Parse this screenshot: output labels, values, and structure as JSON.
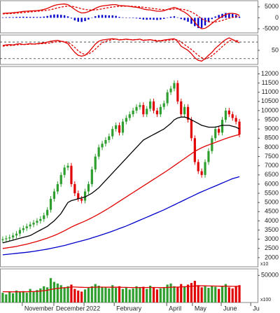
{
  "chart_data": [
    {
      "type": "macd",
      "ylim": [
        -6900,
        7800
      ],
      "yticks": [
        5000,
        0,
        -5000
      ],
      "series": [
        {
          "kind": "bar",
          "color": "#0000cc",
          "values": [
            200,
            250,
            300,
            300,
            400,
            450,
            500,
            450,
            400,
            400,
            350,
            400,
            550,
            850,
            1250,
            1500,
            1500,
            1350,
            1150,
            650,
            -300,
            -1200,
            -1800,
            -1900,
            -1500,
            -800,
            0,
            700,
            1200,
            1300,
            1200,
            1100,
            1100,
            900,
            400,
            200,
            100,
            -100,
            -200,
            -300,
            -500,
            -800,
            -900,
            -800,
            -900,
            -1000,
            -800,
            -500,
            100,
            500,
            700,
            200,
            -600,
            -1100,
            -1800,
            -2700,
            -3800,
            -4700,
            -4600,
            -3500,
            -2000,
            -600,
            600,
            1300,
            1800,
            2200,
            2200,
            1800,
            1300,
            500
          ]
        },
        {
          "kind": "line",
          "color": "#e00000",
          "values": [
            2000,
            2100,
            2200,
            2300,
            2500,
            2700,
            2900,
            3000,
            3100,
            3200,
            3300,
            3500,
            3800,
            4300,
            5000,
            5600,
            6000,
            6200,
            6300,
            6000,
            5000,
            3800,
            2800,
            2200,
            2300,
            2800,
            3500,
            4300,
            5000,
            5400,
            5600,
            5800,
            6000,
            6000,
            5600,
            5500,
            5400,
            5200,
            5000,
            4800,
            4500,
            4000,
            3700,
            3600,
            3300,
            3000,
            3000,
            3200,
            3800,
            4300,
            4700,
            4300,
            3300,
            2600,
            1500,
            0,
            -2000,
            -4000,
            -5000,
            -4800,
            -3800,
            -2600,
            -1300,
            -300,
            600,
            1500,
            2000,
            2000,
            1800,
            1100
          ]
        },
        {
          "kind": "line",
          "style": "dashed",
          "color": "#e00000",
          "values": [
            1800,
            1850,
            1900,
            2000,
            2100,
            2250,
            2400,
            2550,
            2700,
            2800,
            2950,
            3100,
            3250,
            3450,
            3750,
            4100,
            4500,
            4850,
            5150,
            5350,
            5300,
            5000,
            4600,
            4100,
            3800,
            3600,
            3500,
            3600,
            3800,
            4100,
            4400,
            4700,
            4900,
            5100,
            5200,
            5300,
            5300,
            5300,
            5200,
            5100,
            5000,
            4800,
            4600,
            4400,
            4200,
            4000,
            3800,
            3700,
            3700,
            3800,
            4000,
            4100,
            3900,
            3700,
            3300,
            2700,
            1800,
            700,
            -400,
            -1300,
            -1800,
            -2000,
            -1900,
            -1600,
            -1200,
            -700,
            -200,
            200,
            500,
            600
          ]
        }
      ]
    },
    {
      "type": "oscillator",
      "ylim": [
        16,
        87
      ],
      "yticks": [
        50
      ],
      "guide_lines": [
        30,
        70
      ],
      "series": [
        {
          "kind": "line",
          "color": "#e00000",
          "values": [
            62,
            63,
            64,
            63,
            65,
            66,
            64,
            65,
            66,
            65,
            66,
            67,
            68,
            70,
            72,
            73,
            74,
            72,
            70,
            66,
            55,
            45,
            38,
            36,
            38,
            45,
            55,
            65,
            72,
            75,
            76,
            77,
            78,
            77,
            75,
            76,
            77,
            76,
            75,
            76,
            77,
            74,
            75,
            76,
            74,
            72,
            73,
            75,
            76,
            77,
            78,
            72,
            60,
            55,
            50,
            42,
            32,
            26,
            24,
            30,
            38,
            45,
            55,
            62,
            70,
            76,
            80,
            76,
            72,
            68
          ]
        },
        {
          "kind": "line",
          "style": "dashed",
          "color": "#e00000",
          "values": [
            60,
            61,
            62,
            62,
            63,
            64,
            64,
            64,
            65,
            65,
            65,
            66,
            66,
            67,
            68,
            70,
            71,
            72,
            71,
            70,
            64,
            57,
            49,
            43,
            40,
            41,
            46,
            53,
            61,
            68,
            72,
            74,
            76,
            77,
            76,
            76,
            76,
            76,
            76,
            76,
            76,
            75,
            75,
            75,
            75,
            74,
            73,
            73,
            74,
            75,
            76,
            75,
            70,
            64,
            58,
            52,
            45,
            38,
            32,
            29,
            32,
            37,
            44,
            51,
            59,
            66,
            73,
            75,
            74,
            72
          ]
        }
      ]
    },
    {
      "type": "candlestick",
      "ylim": [
        1500,
        12400
      ],
      "yticks": [
        2000,
        2500,
        3000,
        3500,
        4000,
        4500,
        5000,
        5500,
        6000,
        6500,
        7000,
        7500,
        8000,
        8500,
        9000,
        9500,
        10000,
        10500,
        11000,
        11500,
        12000
      ],
      "unit_label": "x10",
      "up_color": "#2e9e2e",
      "down_color": "#e00000",
      "open": [
        2950,
        3000,
        3050,
        3100,
        3200,
        3300,
        3500,
        3600,
        3700,
        3800,
        3900,
        4000,
        4100,
        4300,
        4600,
        5200,
        5600,
        6000,
        6500,
        6900,
        7000,
        6000,
        5500,
        5200,
        5100,
        5600,
        6000,
        6800,
        7500,
        8000,
        8200,
        8400,
        8600,
        9000,
        9200,
        8800,
        9400,
        9600,
        9800,
        10000,
        10200,
        10300,
        9800,
        10100,
        10500,
        10000,
        9800,
        10200,
        10400,
        11000,
        11200,
        11500,
        10500,
        9800,
        10200,
        9500,
        8500,
        7200,
        6700,
        6500,
        7200,
        7800,
        8500,
        9000,
        8800,
        9500,
        10000,
        9800,
        9600,
        9400
      ],
      "high": [
        3150,
        3200,
        3250,
        3350,
        3450,
        3650,
        3750,
        3850,
        3950,
        4050,
        4150,
        4250,
        4450,
        4750,
        5350,
        5750,
        6150,
        6650,
        7050,
        7150,
        7150,
        6150,
        5650,
        5350,
        5750,
        6150,
        6950,
        7650,
        8150,
        8350,
        8550,
        8750,
        9150,
        9350,
        9350,
        9550,
        9750,
        9950,
        10150,
        10350,
        10450,
        10450,
        10250,
        10650,
        10650,
        10150,
        10350,
        10550,
        11150,
        11350,
        11650,
        11650,
        10650,
        10350,
        10350,
        9650,
        8650,
        7350,
        6850,
        7350,
        7950,
        8650,
        9150,
        9150,
        9650,
        10150,
        10150,
        9950,
        9750,
        9550
      ],
      "low": [
        2800,
        2850,
        2900,
        2950,
        3050,
        3150,
        3350,
        3450,
        3550,
        3650,
        3750,
        3850,
        3950,
        4150,
        4450,
        5050,
        5450,
        5850,
        6350,
        6750,
        5850,
        5350,
        5050,
        4950,
        4950,
        5450,
        5850,
        6650,
        7350,
        7850,
        8050,
        8250,
        8450,
        8850,
        8650,
        8650,
        9250,
        9450,
        9650,
        9850,
        10050,
        9650,
        9650,
        9950,
        9850,
        9650,
        9650,
        10050,
        10250,
        10850,
        11050,
        10350,
        9650,
        9650,
        9350,
        8350,
        7050,
        6550,
        6350,
        6350,
        7050,
        7650,
        8350,
        8650,
        8650,
        9350,
        9650,
        9450,
        9250,
        8550
      ],
      "close": [
        3000,
        3050,
        3100,
        3200,
        3300,
        3500,
        3600,
        3700,
        3800,
        3900,
        4000,
        4100,
        4300,
        4600,
        5200,
        5600,
        6000,
        6500,
        6900,
        7000,
        6000,
        5500,
        5200,
        5100,
        5600,
        6000,
        6800,
        7500,
        8000,
        8200,
        8400,
        8600,
        9000,
        9200,
        8800,
        9400,
        9600,
        9800,
        10000,
        10200,
        10300,
        9800,
        10100,
        10500,
        10000,
        9800,
        10200,
        10400,
        11000,
        11200,
        11500,
        10500,
        9800,
        10200,
        9500,
        8500,
        7200,
        6700,
        6500,
        7200,
        7800,
        8500,
        9000,
        8800,
        9500,
        10000,
        9800,
        9600,
        9400,
        8700
      ],
      "series": [
        {
          "kind": "line",
          "color": "#0000cc",
          "values": [
            2150,
            2170,
            2190,
            2210,
            2230,
            2250,
            2270,
            2290,
            2310,
            2340,
            2370,
            2400,
            2430,
            2460,
            2500,
            2540,
            2580,
            2620,
            2660,
            2710,
            2760,
            2810,
            2860,
            2910,
            2960,
            3010,
            3070,
            3130,
            3190,
            3250,
            3310,
            3370,
            3440,
            3510,
            3580,
            3650,
            3720,
            3800,
            3880,
            3960,
            4040,
            4120,
            4200,
            4280,
            4360,
            4440,
            4520,
            4600,
            4690,
            4780,
            4870,
            4960,
            5050,
            5140,
            5230,
            5320,
            5410,
            5500,
            5580,
            5660,
            5740,
            5820,
            5900,
            5980,
            6060,
            6140,
            6220,
            6300,
            6350,
            6400
          ]
        },
        {
          "kind": "line",
          "color": "#e00000",
          "values": [
            2500,
            2520,
            2550,
            2580,
            2610,
            2650,
            2690,
            2730,
            2780,
            2830,
            2880,
            2940,
            3000,
            3060,
            3130,
            3200,
            3280,
            3370,
            3460,
            3560,
            3660,
            3750,
            3830,
            3910,
            3990,
            4080,
            4170,
            4270,
            4370,
            4480,
            4590,
            4700,
            4820,
            4940,
            5060,
            5180,
            5300,
            5420,
            5540,
            5660,
            5780,
            5900,
            6020,
            6140,
            6260,
            6380,
            6500,
            6620,
            6740,
            6870,
            7000,
            7130,
            7260,
            7390,
            7520,
            7650,
            7780,
            7880,
            7980,
            8060,
            8130,
            8200,
            8270,
            8340,
            8410,
            8480,
            8540,
            8600,
            8650,
            8700
          ]
        },
        {
          "kind": "line",
          "color": "#000000",
          "values": [
            2800,
            2850,
            2900,
            2950,
            3000,
            3050,
            3100,
            3150,
            3200,
            3300,
            3400,
            3500,
            3600,
            3700,
            3850,
            4000,
            4200,
            4400,
            4700,
            5000,
            5100,
            5150,
            5200,
            5250,
            5300,
            5400,
            5500,
            5650,
            5800,
            6000,
            6200,
            6400,
            6600,
            6800,
            7000,
            7200,
            7400,
            7600,
            7800,
            8000,
            8200,
            8400,
            8500,
            8600,
            8700,
            8800,
            8900,
            9000,
            9150,
            9300,
            9500,
            9600,
            9650,
            9650,
            9600,
            9500,
            9400,
            9300,
            9200,
            9150,
            9100,
            9100,
            9100,
            9150,
            9200,
            9200,
            9200,
            9150,
            9100,
            9000
          ]
        }
      ]
    },
    {
      "type": "volume",
      "ylim": [
        0,
        62000
      ],
      "yticks": [
        50000
      ],
      "unit_label": "x100",
      "xlim": [
        -0.8,
        74.3
      ],
      "xticks": [
        {
          "value": 5.7,
          "label": "November"
        },
        {
          "value": 14.9,
          "label": "December"
        },
        {
          "value": 23.7,
          "label": "2022"
        },
        {
          "value": 32.5,
          "label": "February"
        },
        {
          "value": 47.8,
          "label": "April"
        },
        {
          "value": 55.3,
          "label": "May"
        },
        {
          "value": 63.7,
          "label": "June"
        },
        {
          "value": 72.3,
          "label": "Ju"
        }
      ],
      "values": [
        18000,
        15000,
        20000,
        17000,
        22000,
        19000,
        21000,
        18000,
        25000,
        20000,
        23000,
        26000,
        30000,
        28000,
        45000,
        38000,
        35000,
        32000,
        28000,
        30000,
        33000,
        25000,
        22000,
        20000,
        24000,
        27000,
        30000,
        34000,
        31000,
        29000,
        28000,
        26000,
        32000,
        27000,
        30000,
        25000,
        28000,
        24000,
        26000,
        30000,
        27000,
        29000,
        25000,
        31000,
        28000,
        24000,
        26000,
        27000,
        33000,
        35000,
        30000,
        28000,
        34000,
        30000,
        33000,
        36000,
        40000,
        32000,
        28000,
        30000,
        27000,
        31000,
        29000,
        25000,
        30000,
        34000,
        28000,
        26000,
        30000,
        32000
      ],
      "series": [
        {
          "kind": "line",
          "color": "#e00000",
          "values": [
            20000,
            19800,
            19800,
            19600,
            19800,
            19800,
            19900,
            19800,
            20200,
            20200,
            20500,
            21000,
            21800,
            22500,
            24000,
            25000,
            26000,
            26800,
            27200,
            27800,
            28500,
            28500,
            28300,
            28000,
            27800,
            27800,
            28000,
            28300,
            28400,
            28400,
            28300,
            28100,
            28200,
            28100,
            28100,
            27900,
            27900,
            27700,
            27600,
            27700,
            27700,
            27800,
            27600,
            27800,
            27800,
            27600,
            27500,
            27500,
            27800,
            28200,
            28400,
            28400,
            28800,
            29000,
            29400,
            29900,
            30600,
            30800,
            30700,
            30700,
            30500,
            30500,
            30400,
            30100,
            30000,
            30200,
            30000,
            29800,
            29800,
            30000
          ]
        }
      ]
    }
  ]
}
